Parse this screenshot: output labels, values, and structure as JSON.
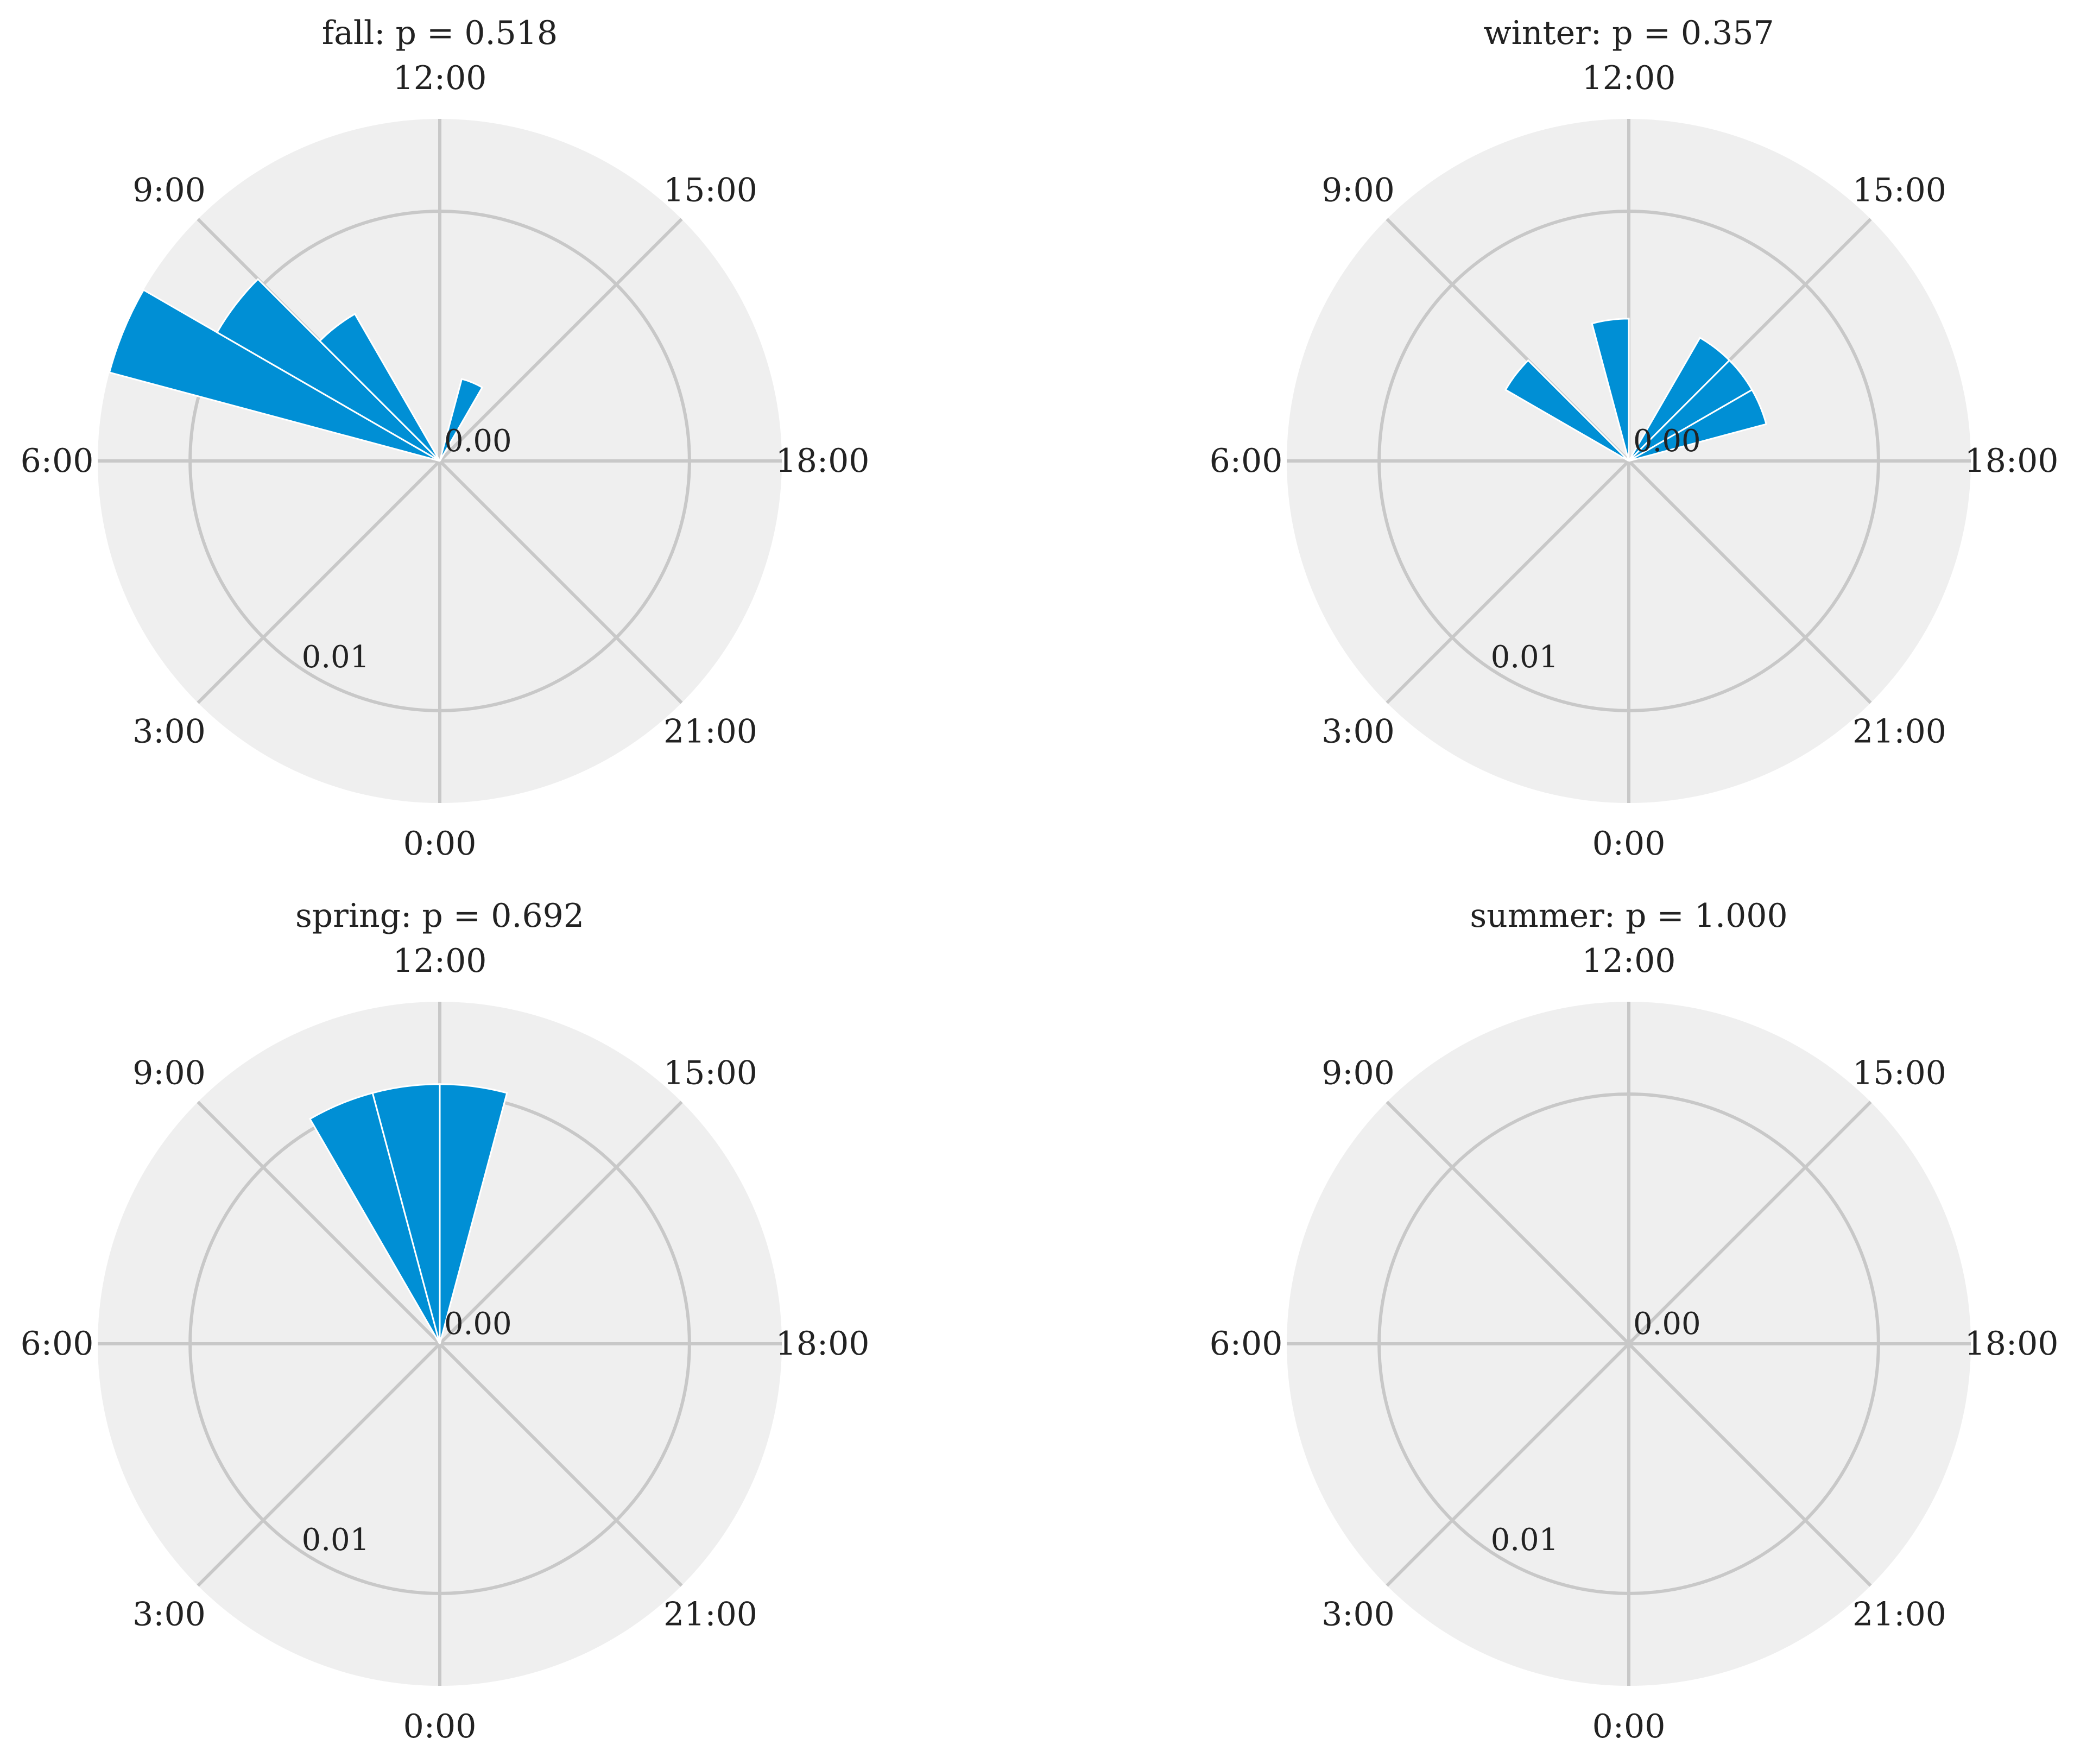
{
  "chart_data": [
    {
      "type": "polar-bar",
      "title": "fall: p = 0.518",
      "theta_labels": [
        "12:00",
        "15:00",
        "18:00",
        "21:00",
        "0:00",
        "3:00",
        "6:00",
        "9:00"
      ],
      "r_tick_labels": [
        "0.00",
        "0.01"
      ],
      "rlim": [
        0,
        0.0137
      ],
      "bin_width_hours": 1,
      "bars": [
        {
          "hour": 7.5,
          "value": 0.0137
        },
        {
          "hour": 8.5,
          "value": 0.0103
        },
        {
          "hour": 9.5,
          "value": 0.0068
        },
        {
          "hour": 13.5,
          "value": 0.0034
        }
      ]
    },
    {
      "type": "polar-bar",
      "title": "winter: p = 0.357",
      "theta_labels": [
        "12:00",
        "15:00",
        "18:00",
        "21:00",
        "0:00",
        "3:00",
        "6:00",
        "9:00"
      ],
      "r_tick_labels": [
        "0.00",
        "0.01"
      ],
      "rlim": [
        0,
        0.0137
      ],
      "bin_width_hours": 1,
      "bars": [
        {
          "hour": 8.5,
          "value": 0.0057
        },
        {
          "hour": 11.5,
          "value": 0.0057
        },
        {
          "hour": 14.5,
          "value": 0.0057
        },
        {
          "hour": 15.5,
          "value": 0.0057
        },
        {
          "hour": 16.5,
          "value": 0.0057
        }
      ]
    },
    {
      "type": "polar-bar",
      "title": "spring: p = 0.692",
      "theta_labels": [
        "12:00",
        "15:00",
        "18:00",
        "21:00",
        "0:00",
        "3:00",
        "6:00",
        "9:00"
      ],
      "r_tick_labels": [
        "0.00",
        "0.01"
      ],
      "rlim": [
        0,
        0.0137
      ],
      "bin_width_hours": 1,
      "bars": [
        {
          "hour": 10.5,
          "value": 0.0104
        },
        {
          "hour": 11.5,
          "value": 0.0104
        },
        {
          "hour": 12.5,
          "value": 0.0104
        }
      ]
    },
    {
      "type": "polar-bar",
      "title": "summer: p = 1.000",
      "theta_labels": [
        "12:00",
        "15:00",
        "18:00",
        "21:00",
        "0:00",
        "3:00",
        "6:00",
        "9:00"
      ],
      "r_tick_labels": [
        "0.00",
        "0.01"
      ],
      "rlim": [
        0,
        0.0137
      ],
      "bin_width_hours": 1,
      "bars": []
    }
  ],
  "colors": {
    "bar": "#008fd5",
    "face": "#efefef",
    "grid": "#c8c8c8",
    "text": "#222222"
  }
}
